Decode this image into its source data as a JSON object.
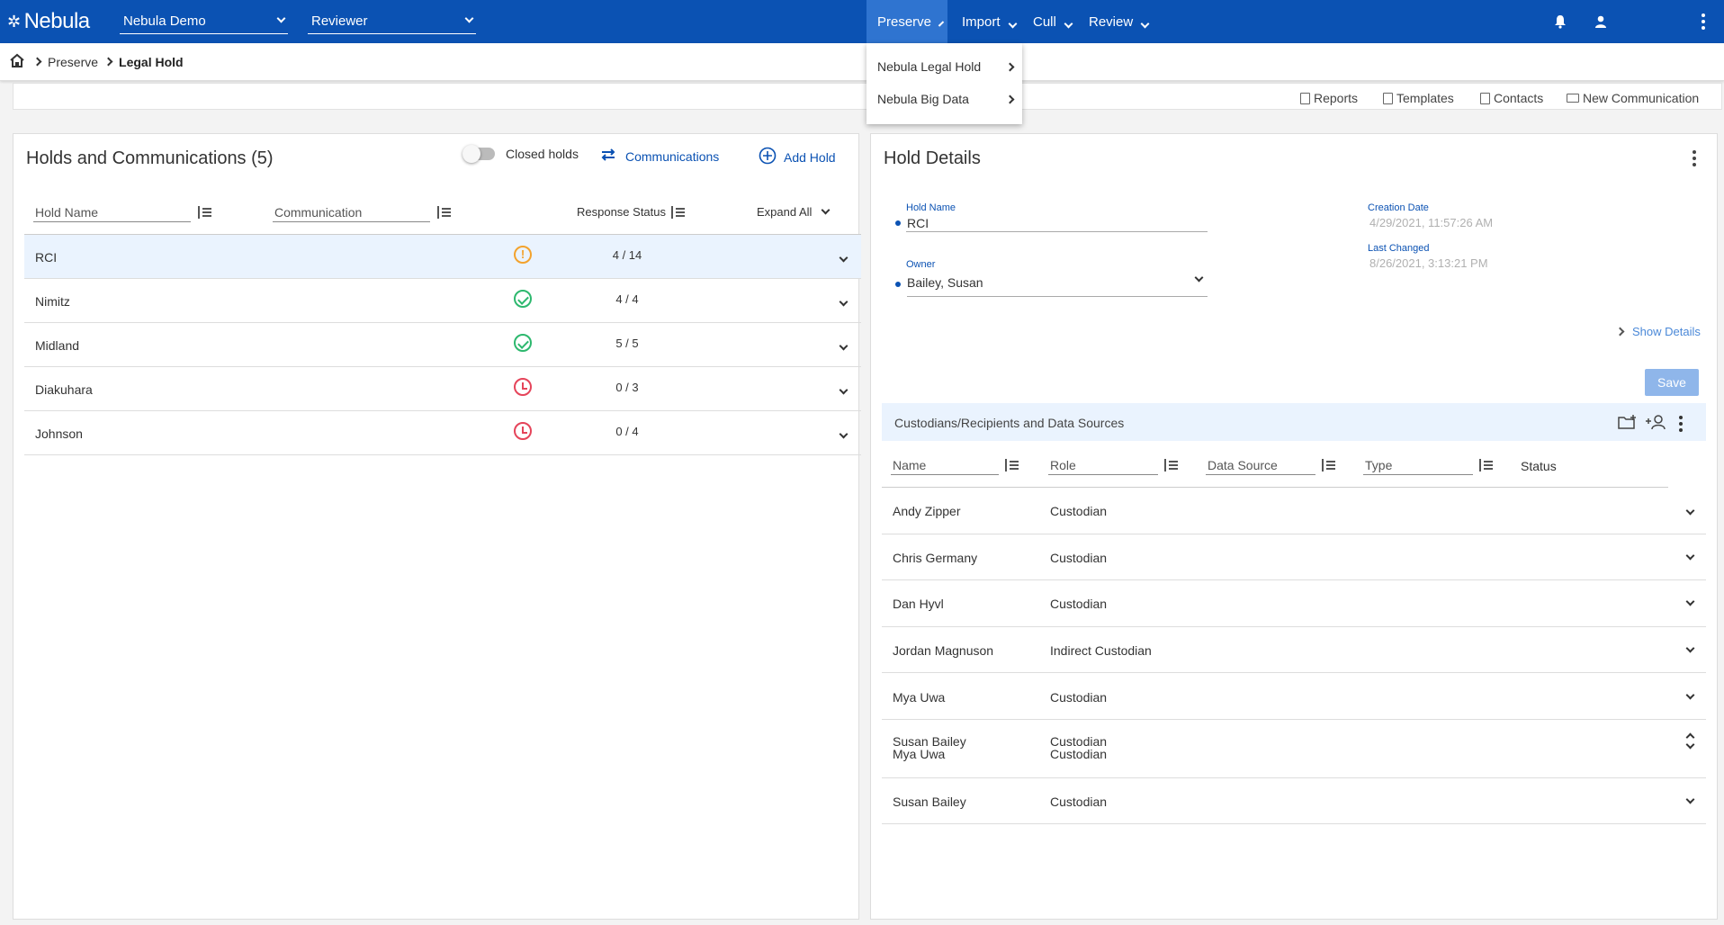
{
  "app": {
    "logo": "Nebula",
    "workspace": "Nebula Demo",
    "role": "Reviewer"
  },
  "nav": {
    "items": [
      "Preserve",
      "Import",
      "Cull",
      "Review"
    ],
    "active": "Preserve"
  },
  "preserve_menu": {
    "items": [
      "Nebula Legal Hold",
      "Nebula Big Data"
    ]
  },
  "breadcrumb": {
    "parent": "Preserve",
    "current": "Legal Hold"
  },
  "toolbar": {
    "reports": "Reports",
    "templates": "Templates",
    "contacts": "Contacts",
    "new_communication": "New Communication"
  },
  "holds": {
    "title": "Holds and Communications (5)",
    "closed_holds_label": "Closed holds",
    "communications_label": "Communications",
    "add_hold_label": "Add Hold",
    "columns": {
      "hold_name": "Hold Name",
      "communication": "Communication",
      "response_status": "Response Status",
      "expand_all": "Expand All"
    },
    "rows": [
      {
        "name": "RCI",
        "status": "warning",
        "response": "4 / 14"
      },
      {
        "name": "Nimitz",
        "status": "complete",
        "response": "4 / 4"
      },
      {
        "name": "Midland",
        "status": "complete",
        "response": "5 / 5"
      },
      {
        "name": "Diakuhara",
        "status": "overdue",
        "response": "0 / 3"
      },
      {
        "name": "Johnson",
        "status": "overdue",
        "response": "0 / 4"
      }
    ]
  },
  "details": {
    "title": "Hold Details",
    "hold_name_label": "Hold Name",
    "hold_name": "RCI",
    "owner_label": "Owner",
    "owner": "Bailey, Susan",
    "creation_label": "Creation Date",
    "creation_date": "4/29/2021, 11:57:26 AM",
    "changed_label": "Last Changed",
    "changed_date": "8/26/2021, 3:13:21 PM",
    "show_details": "Show Details",
    "save": "Save"
  },
  "custodians": {
    "title": "Custodians/Recipients and Data Sources",
    "columns": {
      "name": "Name",
      "role": "Role",
      "data_source": "Data Source",
      "type": "Type",
      "status": "Status"
    },
    "rows": [
      {
        "name": "Andy Zipper",
        "role": "Custodian"
      },
      {
        "name": "Chris Germany",
        "role": "Custodian"
      },
      {
        "name": "Dan Hyvl",
        "role": "Custodian"
      },
      {
        "name": "Jordan Magnuson",
        "role": "Indirect Custodian"
      },
      {
        "name": "Mya Uwa",
        "role": "Custodian"
      },
      {
        "name": "Susan Bailey",
        "name2": "Mya Uwa",
        "role": "Custodian",
        "role2": "Custodian"
      },
      {
        "name": "Susan Bailey",
        "role": "Custodian"
      }
    ]
  },
  "colors": {
    "brand": "#0b52b3",
    "warning": "#f3a22d",
    "complete": "#2db86e",
    "overdue": "#e5445a"
  }
}
